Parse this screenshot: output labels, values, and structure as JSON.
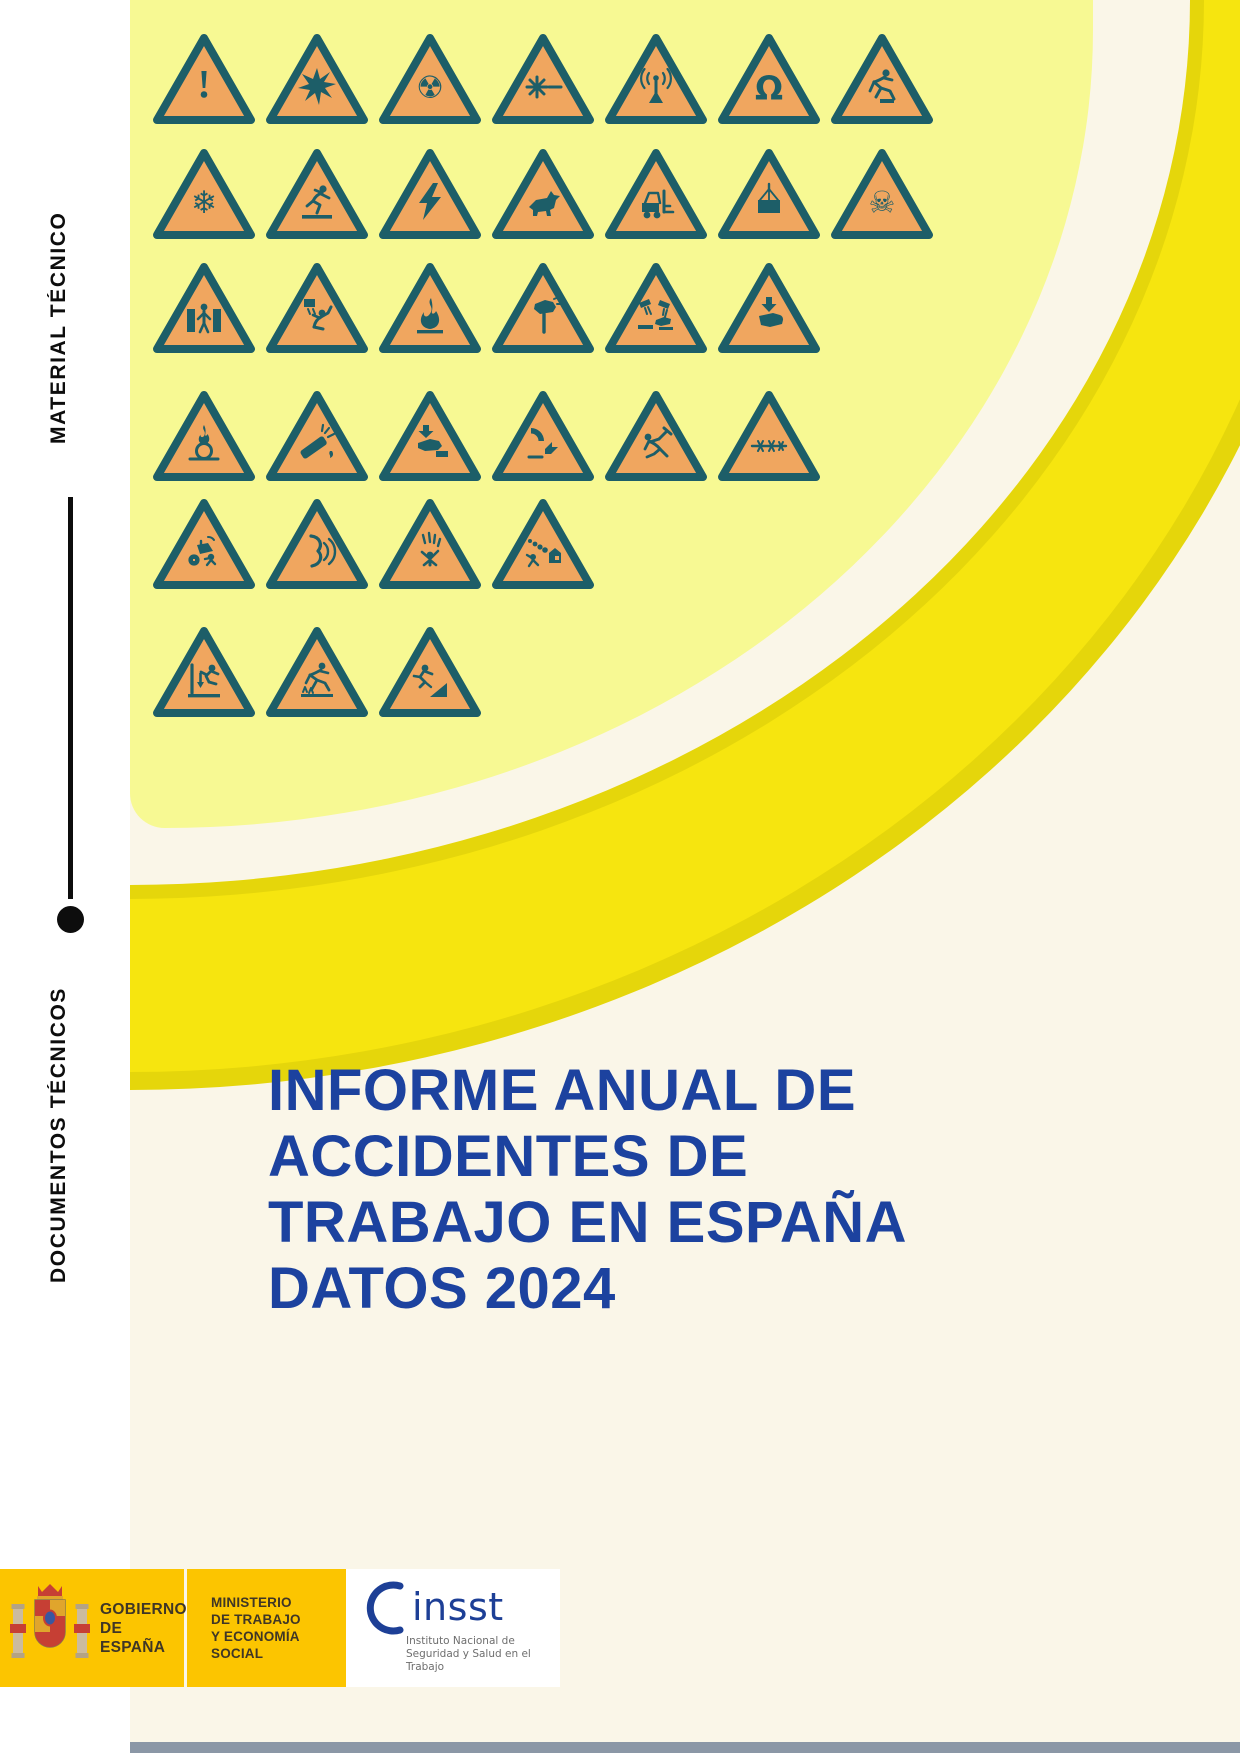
{
  "page": {
    "kind": "report-cover",
    "colors": {
      "white": "#ffffff",
      "cream": "#faf6e8",
      "lemon": "#f7f993",
      "band": "#f6e50f",
      "band_edge": "#e5d60b",
      "triangle_fill": "#f0a65f",
      "triangle_border": "#1d5e68",
      "title_blue": "#1c429f",
      "footer_yellow": "#fcc500"
    }
  },
  "sidebar": {
    "top_label": "MATERIAL TÉCNICO",
    "bottom_label": "DOCUMENTOS TÉCNICOS"
  },
  "icons": {
    "rows": [
      [
        "general-warning",
        "explosive-material",
        "radioactive",
        "laser-beam",
        "non-ionizing-radiation",
        "magnetic-field",
        "trip-hazard"
      ],
      [
        "low-temperature",
        "slippery-surface",
        "electricity",
        "guard-dog",
        "forklift-traffic",
        "suspended-load",
        "toxic-material"
      ],
      [
        "crush-between-objects",
        "overhead-falling-object",
        "flammable-material",
        "hand-injury",
        "corrosive-substance",
        "hand-crush-press"
      ],
      [
        "oxidizing-material",
        "gas-cylinder-burst",
        "hand-entrapment",
        "cutting-machinery",
        "excavation-work",
        "barbed-wire"
      ],
      [
        "vehicle-rollover",
        "loud-noise",
        "falling-icicles",
        "rockfall-landslide"
      ],
      [
        "fall-from-height",
        "trip-obstacle",
        "fall-into-pit"
      ]
    ]
  },
  "title": {
    "lines": [
      "INFORME ANUAL DE",
      "ACCIDENTES DE",
      "TRABAJO EN ESPAÑA",
      "DATOS 2024"
    ]
  },
  "footer": {
    "government": {
      "line1": "GOBIERNO",
      "line2": "DE ESPAÑA"
    },
    "ministry": {
      "line1": "MINISTERIO",
      "line2": "DE TRABAJO",
      "line3": "Y ECONOMÍA SOCIAL"
    },
    "insst": {
      "acronym": "insst",
      "subtitle_line1": "Instituto Nacional de",
      "subtitle_line2": "Seguridad y Salud en el Trabajo"
    }
  }
}
